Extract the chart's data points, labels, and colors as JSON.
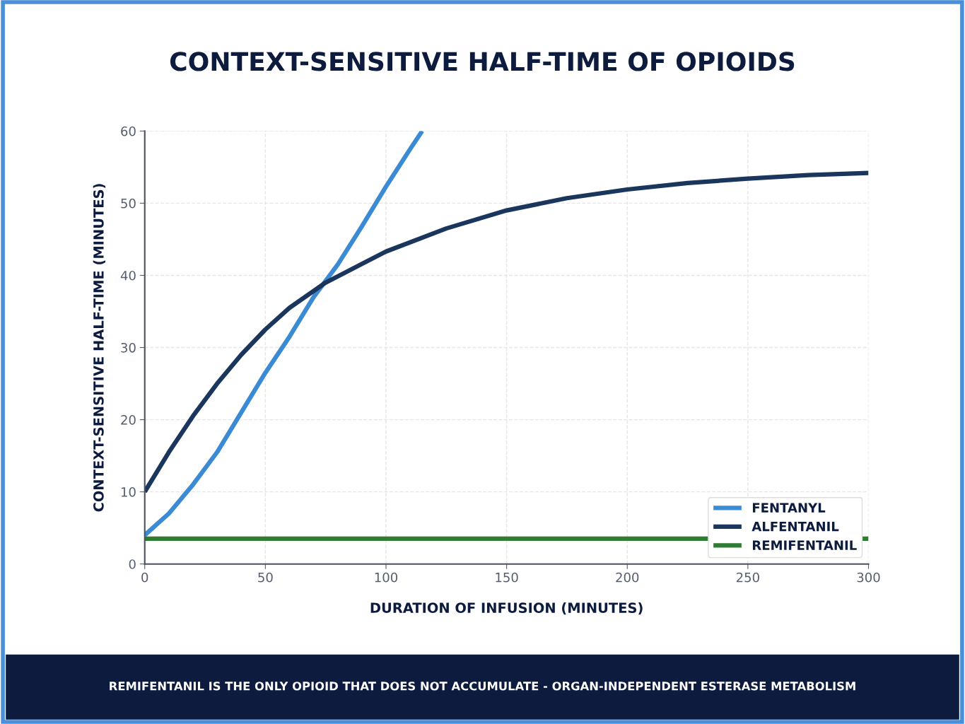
{
  "chart_data": {
    "type": "line",
    "title": "CONTEXT-SENSITIVE HALF-TIME OF OPIOIDS",
    "xlabel": "DURATION OF INFUSION (MINUTES)",
    "ylabel": "CONTEXT-SENSITIVE HALF-TIME (MINUTES)",
    "xlim": [
      0,
      300
    ],
    "ylim": [
      0,
      60
    ],
    "xticks": [
      0,
      50,
      100,
      150,
      200,
      250,
      300
    ],
    "yticks": [
      0,
      10,
      20,
      30,
      40,
      50,
      60
    ],
    "grid": true,
    "legend": "bottom right",
    "marker": "none",
    "line_style": "solid",
    "series": [
      {
        "name": "FENTANYL",
        "color": "#3a8bd4",
        "x": [
          0,
          10,
          20,
          30,
          40,
          50,
          60,
          70,
          80,
          90,
          100,
          110,
          115
        ],
        "values": [
          4,
          7,
          11,
          15.5,
          21,
          26.5,
          31.5,
          37,
          41.5,
          46.8,
          52.3,
          57.5,
          60
        ]
      },
      {
        "name": "ALFENTANIL",
        "color": "#1b365d",
        "x": [
          0,
          10,
          20,
          30,
          40,
          50,
          60,
          75,
          100,
          125,
          150,
          175,
          200,
          225,
          250,
          275,
          300
        ],
        "values": [
          10,
          15.5,
          20.5,
          25,
          29,
          32.5,
          35.5,
          39,
          43.3,
          46.5,
          49,
          50.7,
          51.9,
          52.8,
          53.4,
          53.9,
          54.2
        ]
      },
      {
        "name": "REMIFENTANIL",
        "color": "#2e7d32",
        "x": [
          0,
          300
        ],
        "values": [
          3.5,
          3.5
        ]
      }
    ],
    "annotations": [
      "REMIFENTANIL IS THE ONLY OPIOID THAT DOES NOT ACCUMULATE - ORGAN-INDEPENDENT ESTERASE METABOLISM"
    ]
  }
}
